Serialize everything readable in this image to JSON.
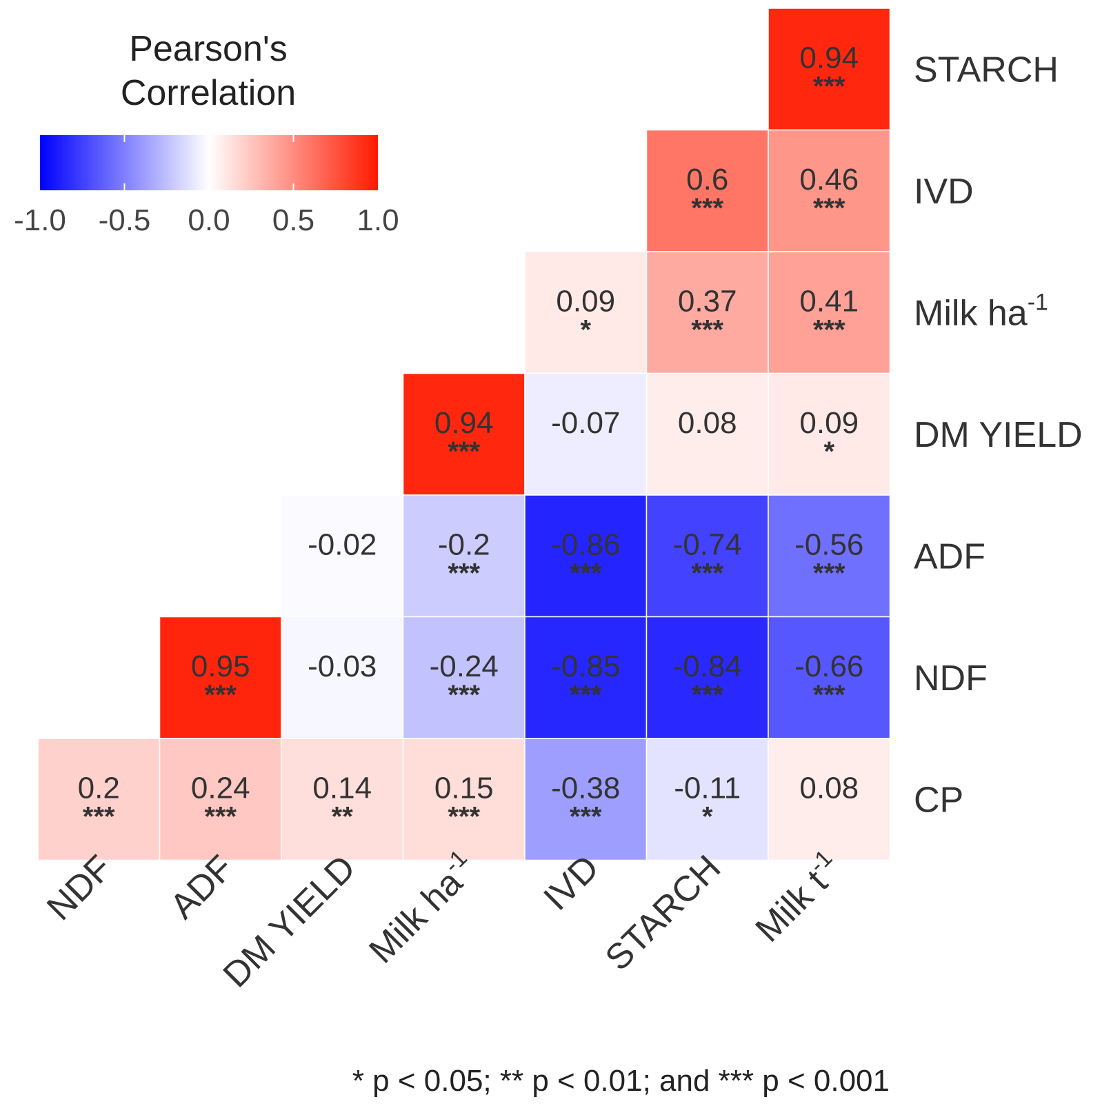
{
  "chart_data": {
    "type": "heatmap",
    "legend": {
      "title_line1": "Pearson's",
      "title_line2": "Correlation",
      "ticks": [
        "-1.0",
        "-0.5",
        "0.0",
        "0.5",
        "1.0"
      ],
      "range": [
        -1.0,
        1.0
      ],
      "colors": {
        "low": "#0000ff",
        "mid": "#ffffff",
        "high": "#ff1a00"
      },
      "placement": "top-left"
    },
    "x_labels": [
      {
        "main": "NDF",
        "sup": ""
      },
      {
        "main": "ADF",
        "sup": ""
      },
      {
        "main": "DM  YIELD",
        "sup": ""
      },
      {
        "main": "Milk  ha",
        "sup": "-1"
      },
      {
        "main": "IVD",
        "sup": ""
      },
      {
        "main": "STARCH",
        "sup": ""
      },
      {
        "main": "Milk  t",
        "sup": "-1"
      }
    ],
    "y_labels": [
      {
        "main": "STARCH",
        "sup": ""
      },
      {
        "main": "IVD",
        "sup": ""
      },
      {
        "main": "Milk  ha",
        "sup": "-1"
      },
      {
        "main": "DM  YIELD",
        "sup": ""
      },
      {
        "main": "ADF",
        "sup": ""
      },
      {
        "main": "NDF",
        "sup": ""
      },
      {
        "main": "CP",
        "sup": ""
      }
    ],
    "cells": [
      {
        "row": 0,
        "col": 6,
        "value": 0.94,
        "label": "0.94",
        "sig": "***"
      },
      {
        "row": 1,
        "col": 5,
        "value": 0.6,
        "label": "0.6",
        "sig": "***"
      },
      {
        "row": 1,
        "col": 6,
        "value": 0.46,
        "label": "0.46",
        "sig": "***"
      },
      {
        "row": 2,
        "col": 4,
        "value": 0.09,
        "label": "0.09",
        "sig": "*"
      },
      {
        "row": 2,
        "col": 5,
        "value": 0.37,
        "label": "0.37",
        "sig": "***"
      },
      {
        "row": 2,
        "col": 6,
        "value": 0.41,
        "label": "0.41",
        "sig": "***"
      },
      {
        "row": 3,
        "col": 3,
        "value": 0.94,
        "label": "0.94",
        "sig": "***"
      },
      {
        "row": 3,
        "col": 4,
        "value": -0.07,
        "label": "-0.07",
        "sig": ""
      },
      {
        "row": 3,
        "col": 5,
        "value": 0.08,
        "label": "0.08",
        "sig": ""
      },
      {
        "row": 3,
        "col": 6,
        "value": 0.09,
        "label": "0.09",
        "sig": "*"
      },
      {
        "row": 4,
        "col": 2,
        "value": -0.02,
        "label": "-0.02",
        "sig": ""
      },
      {
        "row": 4,
        "col": 3,
        "value": -0.2,
        "label": "-0.2",
        "sig": "***"
      },
      {
        "row": 4,
        "col": 4,
        "value": -0.86,
        "label": "-0.86",
        "sig": "***"
      },
      {
        "row": 4,
        "col": 5,
        "value": -0.74,
        "label": "-0.74",
        "sig": "***"
      },
      {
        "row": 4,
        "col": 6,
        "value": -0.56,
        "label": "-0.56",
        "sig": "***"
      },
      {
        "row": 5,
        "col": 1,
        "value": 0.95,
        "label": "0.95",
        "sig": "***"
      },
      {
        "row": 5,
        "col": 2,
        "value": -0.03,
        "label": "-0.03",
        "sig": ""
      },
      {
        "row": 5,
        "col": 3,
        "value": -0.24,
        "label": "-0.24",
        "sig": "***"
      },
      {
        "row": 5,
        "col": 4,
        "value": -0.85,
        "label": "-0.85",
        "sig": "***"
      },
      {
        "row": 5,
        "col": 5,
        "value": -0.84,
        "label": "-0.84",
        "sig": "***"
      },
      {
        "row": 5,
        "col": 6,
        "value": -0.66,
        "label": "-0.66",
        "sig": "***"
      },
      {
        "row": 6,
        "col": 0,
        "value": 0.2,
        "label": "0.2",
        "sig": "***"
      },
      {
        "row": 6,
        "col": 1,
        "value": 0.24,
        "label": "0.24",
        "sig": "***"
      },
      {
        "row": 6,
        "col": 2,
        "value": 0.14,
        "label": "0.14",
        "sig": "**"
      },
      {
        "row": 6,
        "col": 3,
        "value": 0.15,
        "label": "0.15",
        "sig": "***"
      },
      {
        "row": 6,
        "col": 4,
        "value": -0.38,
        "label": "-0.38",
        "sig": "***"
      },
      {
        "row": 6,
        "col": 5,
        "value": -0.11,
        "label": "-0.11",
        "sig": "*"
      },
      {
        "row": 6,
        "col": 6,
        "value": 0.08,
        "label": "0.08",
        "sig": ""
      }
    ],
    "footnote": "* p < 0.05; ** p < 0.01; and *** p < 0.001"
  }
}
